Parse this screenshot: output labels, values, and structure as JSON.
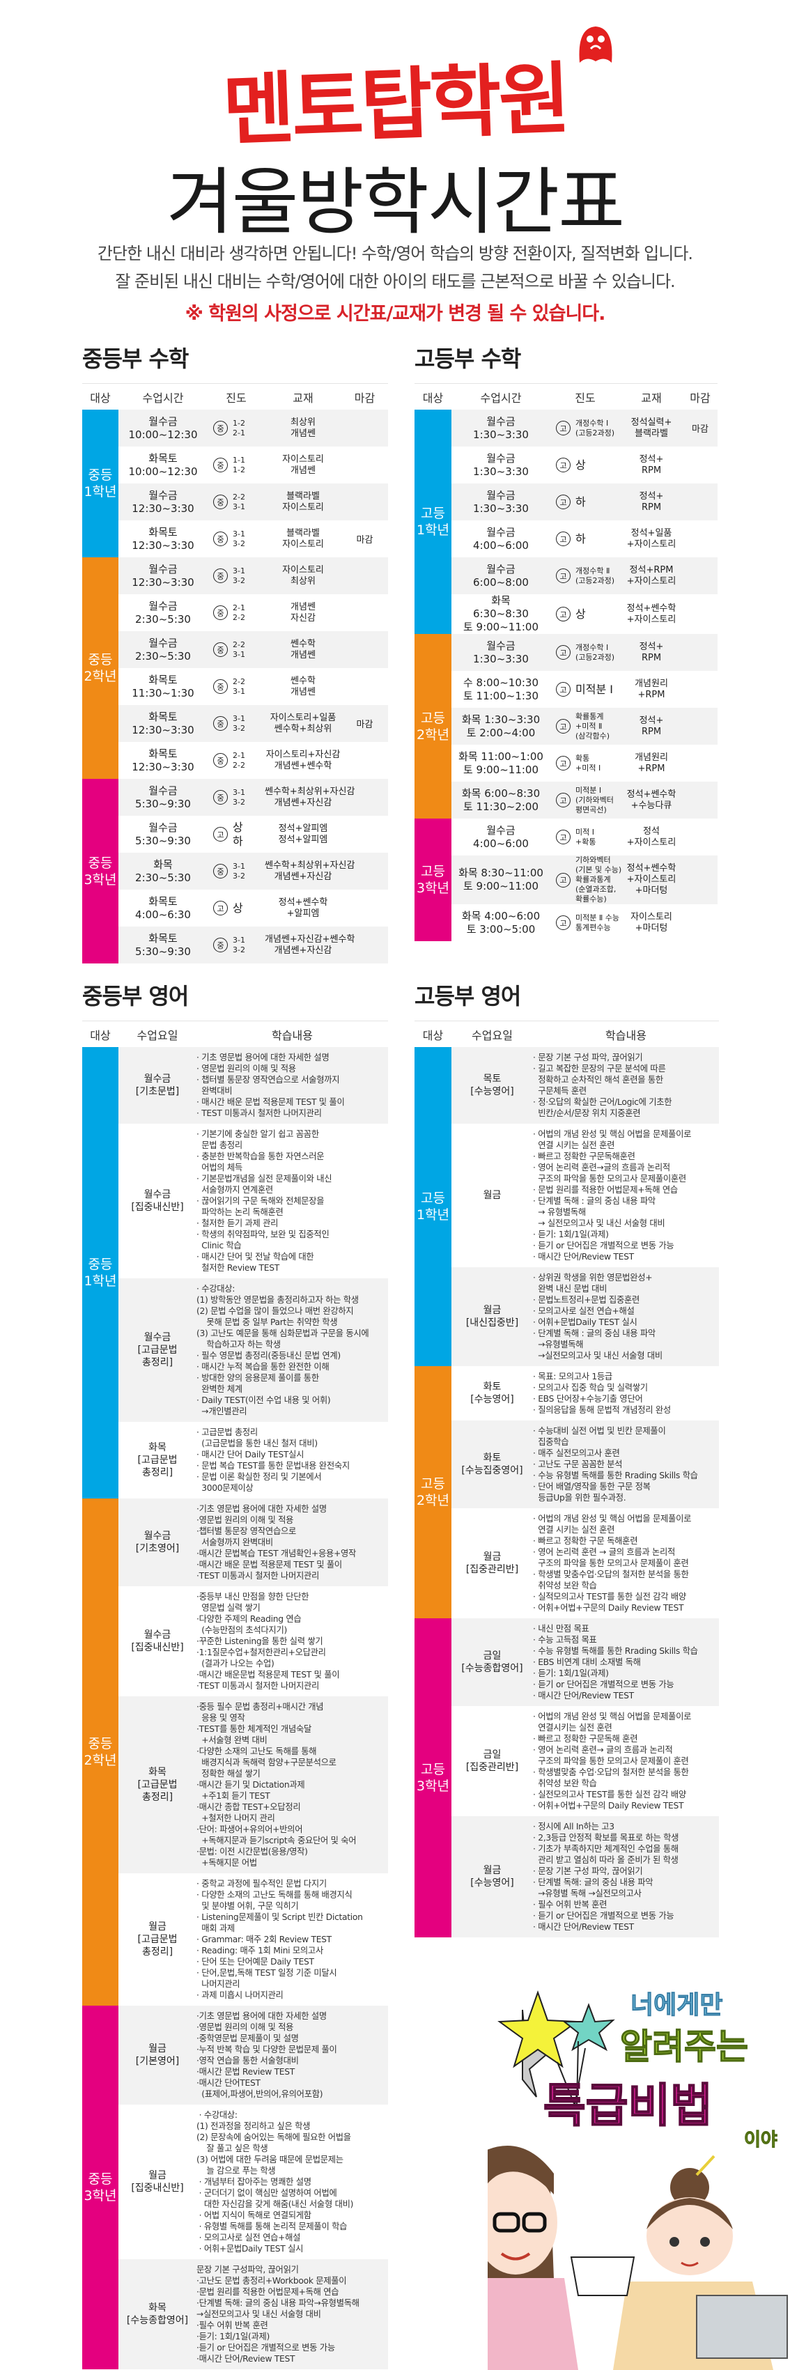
{
  "header": {
    "logo": "멘토탑학원",
    "title": "겨울방학시간표",
    "subtitle_1": "간단한 내신 대비라 생각하면 안됩니다! 수학/영어 학습의 방향 전환이자, 질적변화 입니다.",
    "subtitle_2": "잘 준비된 내신 대비는 수학/영어에 대한 아이의 태도를 근본적으로 바꿀 수 있습니다.",
    "notice": "※ 학원의 사정으로 시간표/교재가 변경 될 수 있습니다."
  },
  "colors": {
    "grade1": "#00a6e4",
    "grade2": "#f08a16",
    "grade3": "#e4007f",
    "logo": "#e3201f",
    "notice": "#d8232a"
  },
  "middle_math": {
    "title": "중등부 수학",
    "headers": [
      "대상",
      "수업시간",
      "진도",
      "교재",
      "마감"
    ],
    "groups": [
      {
        "label": "중등\n1학년",
        "color": "#00a6e4",
        "rows": [
          {
            "time": "월수금\n10:00~12:30",
            "badge": "중",
            "progress": "1-2\n2-1",
            "book": "최상위\n개념쎈",
            "deadline": ""
          },
          {
            "time": "화목토\n10:00~12:30",
            "badge": "중",
            "progress": "1-1\n1-2",
            "book": "자이스토리\n개념쎈",
            "deadline": ""
          },
          {
            "time": "월수금\n12:30~3:30",
            "badge": "중",
            "progress": "2-2\n3-1",
            "book": "블랙라벨\n자이스토리",
            "deadline": ""
          },
          {
            "time": "화목토\n12:30~3:30",
            "badge": "중",
            "progress": "3-1\n3-2",
            "book": "블랙라벨\n자이스토리",
            "deadline": "마감"
          }
        ]
      },
      {
        "label": "중등\n2학년",
        "color": "#f08a16",
        "rows": [
          {
            "time": "월수금\n12:30~3:30",
            "badge": "중",
            "progress": "3-1\n3-2",
            "book": "자이스토리\n최상위",
            "deadline": ""
          },
          {
            "time": "월수금\n2:30~5:30",
            "badge": "중",
            "progress": "2-1\n2-2",
            "book": "개념쎈\n자신감",
            "deadline": ""
          },
          {
            "time": "월수금\n2:30~5:30",
            "badge": "중",
            "progress": "2-2\n3-1",
            "book": "쎈수학\n개념쎈",
            "deadline": ""
          },
          {
            "time": "화목토\n11:30~1:30",
            "badge": "중",
            "progress": "2-2\n3-1",
            "book": "쎈수학\n개념쎈",
            "deadline": ""
          },
          {
            "time": "화목토\n12:30~3:30",
            "badge": "중",
            "progress": "3-1\n3-2",
            "book": "자이스토리+일품\n쎈수학+최상위",
            "deadline": "마감"
          },
          {
            "time": "화목토\n12:30~3:30",
            "badge": "중",
            "progress": "2-1\n2-2",
            "book": "자이스토리+자신감\n개념쎈+쎈수학",
            "deadline": ""
          }
        ]
      },
      {
        "label": "중등\n3학년",
        "color": "#e4007f",
        "rows": [
          {
            "time": "월수금\n5:30~9:30",
            "badge": "중",
            "progress": "3-1\n3-2",
            "book": "쎈수학+최상위+자신감\n개념쎈+자신감",
            "deadline": ""
          },
          {
            "time": "월수금\n5:30~9:30",
            "badge": "고",
            "progress": "상\n하",
            "book": "정석+알피엠\n정석+알피엠",
            "deadline": ""
          },
          {
            "time": "화목\n2:30~5:30",
            "badge": "중",
            "progress": "3-1\n3-2",
            "book": "쎈수학+최상위+자신감\n개념쎈+자신감",
            "deadline": ""
          },
          {
            "time": "화목토\n4:00~6:30",
            "badge": "고",
            "progress": "상",
            "book": "정석+쎈수학\n+알피엠",
            "deadline": ""
          },
          {
            "time": "화목토\n5:30~9:30",
            "badge": "중",
            "progress": "3-1\n3-2",
            "book": "개념쎈+자신감+쎈수학\n개념쎈+자신감",
            "deadline": ""
          }
        ]
      }
    ]
  },
  "high_math": {
    "title": "고등부 수학",
    "headers": [
      "대상",
      "수업시간",
      "진도",
      "교재",
      "마감"
    ],
    "groups": [
      {
        "label": "고등\n1학년",
        "color": "#00a6e4",
        "rows": [
          {
            "time": "월수금\n1:30~3:30",
            "badge": "고",
            "progress": "개정수학 Ⅰ\n(고등2과정)",
            "book": "정석실력+\n블랙라벨",
            "deadline": "마감"
          },
          {
            "time": "월수금\n1:30~3:30",
            "badge": "고",
            "progress": "상",
            "book": "정석+\nRPM",
            "deadline": ""
          },
          {
            "time": "월수금\n1:30~3:30",
            "badge": "고",
            "progress": "하",
            "book": "정석+\nRPM",
            "deadline": ""
          },
          {
            "time": "월수금\n4:00~6:00",
            "badge": "고",
            "progress": "하",
            "book": "정석+일품\n+자이스토리",
            "deadline": ""
          },
          {
            "time": "월수금\n6:00~8:00",
            "badge": "고",
            "progress": "개정수학 Ⅱ\n(고등2과정)",
            "book": "정석+RPM\n+자이스토리",
            "deadline": ""
          },
          {
            "time": "화목\n6:30~8:30\n토 9:00~11:00",
            "badge": "고",
            "progress": "상",
            "book": "정석+쎈수학\n+자이스토리",
            "deadline": ""
          }
        ]
      },
      {
        "label": "고등\n2학년",
        "color": "#f08a16",
        "rows": [
          {
            "time": "월수금\n1:30~3:30",
            "badge": "고",
            "progress": "개정수학 Ⅰ\n(고등2과정)",
            "book": "정석+\nRPM",
            "deadline": ""
          },
          {
            "time": "수 8:00~10:30\n토 11:00~1:30",
            "badge": "고",
            "progress": "미적분 Ⅰ",
            "book": "개념원리\n+RPM",
            "deadline": ""
          },
          {
            "time": "화목 1:30~3:30\n토 2:00~4:00",
            "badge": "고",
            "progress": "확률통계\n+미적 Ⅱ\n(삼각함수)",
            "book": "정석+\nRPM",
            "deadline": ""
          },
          {
            "time": "화목 11:00~1:00\n토 9:00~11:00",
            "badge": "고",
            "progress": "확통\n+미적 Ⅰ",
            "book": "개념원리\n+RPM",
            "deadline": ""
          },
          {
            "time": "화목 6:00~8:30\n토 11:30~2:00",
            "badge": "고",
            "progress": "미적분 Ⅰ\n(기하와벡터\n평면곡선)",
            "book": "정석+쎈수학\n+수능다큐",
            "deadline": ""
          }
        ]
      },
      {
        "label": "고등\n3학년",
        "color": "#e4007f",
        "rows": [
          {
            "time": "월수금\n4:00~6:00",
            "badge": "고",
            "progress": "미적 Ⅰ\n+확통",
            "book": "정석\n+자이스토리",
            "deadline": ""
          },
          {
            "time": "화목 8:30~11:00\n토 9:00~11:00",
            "badge": "고",
            "progress": "기하와벡터\n(기본 및 수능)\n확률과통계\n(순열과조합,\n확률수능)",
            "book": "정석+쎈수학\n+자이스토리\n+마더텅",
            "deadline": ""
          },
          {
            "time": "화목 4:00~6:00\n토 3:00~5:00",
            "badge": "고",
            "progress": "미적분 Ⅱ 수능\n통계편수능",
            "book": "자이스토리\n+마더텅",
            "deadline": ""
          }
        ]
      }
    ]
  },
  "middle_english": {
    "title": "중등부 영어",
    "headers": [
      "대상",
      "수업요일",
      "학습내용"
    ],
    "groups": [
      {
        "label": "중등\n1학년",
        "color": "#00a6e4",
        "rows": [
          {
            "day": "월수금\n[기초문법]",
            "lines": [
              "· 기초 영문법 용어에 대한 자세한 설명",
              "· 영문법 원리의 이해 및 적용",
              "· 챕터별 통문장 영작연습으로 서술형까지",
              "  완벽대비",
              "· 매시간 배운 문법 적용문제 TEST 및 풀이",
              "· TEST 미통과시 철저한 나머지관리"
            ]
          },
          {
            "day": "월수금\n[집중내신반]",
            "lines": [
              "· 기본기에 충실한 알기 쉽고 꼼꼼한",
              "  문법 총정리",
              "· 충분한 반복학습을 통한 자연스러운",
              "  어법의 체득",
              "· 기본문법개념을 실전 문제풀이와 내신",
              "  서술형까지 연계훈련",
              "· 끊어읽기의 구문 독해와 전체문장을",
              "  파악하는 논리 독해훈련",
              "· 철저한 듣기 과제 관리",
              "· 학생의 취약점파악, 보완 및 집중적인",
              "  Clinic 학습",
              "· 매시간 단어 및 전날 학습에 대한",
              "  철저한 Review TEST"
            ]
          },
          {
            "day": "월수금\n[고급문법\n총정리]",
            "lines": [
              "· 수강대상:",
              "(1) 방학동안 영문법을 총정리하고자 하는 학생",
              "(2) 문법 수업을 많이 들었으나 매번 완강하지",
              "    못해 문법 중 일부 Part는 취약한 학생",
              "(3) 고난도 예문을 통해 심화문법과 구문을 동시에",
              "    학습하고자 하는 학생",
              "· 필수 영문법 총정리(중등내신 문법 연계)",
              "· 매시간 누적 복습을 통한 완전한 이해",
              "· 방대한 양의 응용문제 풀이를 통한",
              "  완벽한 체계",
              "· Daily TEST(이전 수업 내용 및 어휘)",
              "  →개인별관리"
            ]
          },
          {
            "day": "화목\n[고급문법\n총정리]",
            "lines": [
              "· 고급문법 총정리",
              "  (고급문법을 통한 내신 철저 대비)",
              "· 매시간 단어 Daily TEST실시",
              "· 문법 복습 TEST를 통한 문법내용 완전숙지",
              "· 문법 이론 확실한 정리 및 기본에서",
              "  3000문제이상"
            ]
          }
        ]
      },
      {
        "label": "중등\n2학년",
        "color": "#f08a16",
        "rows": [
          {
            "day": "월수금\n[기초영어]",
            "lines": [
              "·기초 영문법 용어에 대한 자세한 설명",
              "·영문법 원리의 이해 및 적용",
              "·챕터별 통문장 영작연습으로",
              "  서술형까지 완벽대비",
              "·매시간 문법복습 TEST 개념확인+응용+영작",
              "·매시간 배운 문법 적용문제 TEST 및 풀이",
              "·TEST 미통과시 철저한 나머지관리"
            ]
          },
          {
            "day": "월수금\n[집중내신반]",
            "lines": [
              "·중등부 내신 만점을 향한 단단한",
              "  영문법 실력 쌓기",
              "·다양한 주제의 Reading 연습",
              "  (수능만점의 초석다지기)",
              "·꾸준한 Listening을 통한 실력 쌓기",
              "·1:1질문수업+철저한관리+오답관리",
              "  (결과가 나오는 수업)",
              "·매시간 배운문법 적용문제 TEST 및 풀이",
              "·TEST 미통과시 철저한 나머지관리"
            ]
          },
          {
            "day": "화목\n[고급문법\n총정리]",
            "lines": [
              "·중등 필수 문법 총정리+매시간 개념",
              "  응용 및 영작",
              "·TEST를 통한 체계적인 개념숙달",
              "  +서술형 완벽 대비",
              "·다양한 소재의 고난도 독해를 통해",
              "  배경지식과 독해력 함양+구문분석으로",
              "  정확한 해설 쌓기",
              "·매시간 듣기 및 Dictation과제",
              "  +주1회 듣기 TEST",
              "·매시간 종합 TEST+오답정리",
              "  +철저한 나머지 관리",
              "·단어: 파생어+유의어+반의어",
              "  +독해지문과 듣기script속 중요단어 및 숙어",
              "·문법: 이전 시간문법(응용/영작)",
              "  +독해지문 어법"
            ]
          },
          {
            "day": "월금\n[고급문법\n총정리]",
            "lines": [
              "· 중학교 과정에 필수적인 문법 다지기",
              "· 다양한 소재의 고난도 독해를 통해 배경지식",
              "  및 분야별 어휘, 구문 익히기",
              "· Listening문제풀이 및 Script 빈칸 Dictation",
              "  매회 과제",
              "· Grammar: 매주 2회 Review TEST",
              "· Reading: 매주 1회 Mini 모의고사",
              "· 단어 또는 단어예문 Daily TEST",
              "· 단어,문법,독해 TEST 일정 기준 미달시",
              "  나머지관리",
              "· 과제 미흡시 나머지관리"
            ]
          }
        ]
      },
      {
        "label": "중등\n3학년",
        "color": "#e4007f",
        "rows": [
          {
            "day": "월금\n[기본영어]",
            "lines": [
              "·기초 영문법 용어에 대한 자세한 설명",
              "·영문법 원리의 이해 및 적용",
              "·중학영문법 문제풀이 및 설명",
              "·누적 반복 학습 및 다양한 문법문제 풀이",
              "·영작 연습을 통한 서술형대비",
              "·매시간 문법 Review TEST",
              "·매시간 단어TEST",
              "  (표제어,파생어,반의어,유의어포함)"
            ]
          },
          {
            "day": "월금\n[집중내신반]",
            "lines": [
              " · 수강대상:",
              "(1) 전과정을 정리하고 싶은 학생",
              "(2) 문장속에 숨어있는 독해에 필요한 어법을",
              "    잘 풀고 싶은 학생",
              "(3) 어법에 대한 두려움 때문에 문법문제는",
              "    늘 감으로 푸는 학생",
              " · 개념부터 잡아주는 명쾌한 설명",
              " · 군더더기 없이 핵심만 설명하여 어법에",
              "   대한 자신감을 갖게 해줌(내신 서술형 대비)",
              " · 어법 지식이 독해로 연결되게함",
              " · 유형별 독해를 통해 논리적 문제풀이 학습",
              " · 모의고사로 실전 연습+해설",
              " · 어휘+문법Daily TEST 실시"
            ]
          },
          {
            "day": "화목\n[수능종합영어]",
            "lines": [
              "문장 기본 구성파악, 끊어읽기",
              "·고난도 문법 총정리+Workbook 문제풀이",
              "·문법 원리를 적용한 어법문제+독해 연습",
              "·단계별 독해: 글의 중심 내용 파악→유형별독해",
              "→실전모의고사 및 내신 서술형 대비",
              "·필수 어휘 반복 훈련",
              "·듣기: 1회/1일(과제)",
              "·듣기 or 단어집은 개별적으로 변동 가능",
              "·매시간 단어/Review TEST"
            ]
          }
        ]
      }
    ]
  },
  "high_english": {
    "title": "고등부 영어",
    "headers": [
      "대상",
      "수업요일",
      "학습내용"
    ],
    "groups": [
      {
        "label": "고등\n1학년",
        "color": "#00a6e4",
        "rows": [
          {
            "day": "목토\n[수능영어]",
            "lines": [
              "· 문장 기본 구성 파악, 끊어읽기",
              "· 길고 복잡한 문장의 구문 분석에 따른",
              "  정확하고 순차적인 해석 훈련을 통한",
              "  구문체득 훈련",
              "· 정·오답의 확실한 근어/Logic에 기초한",
              "  빈칸/순서/문장 위치 지중훈련"
            ]
          },
          {
            "day": "월금",
            "lines": [
              "· 어법의 개념 완성 및 핵심 어법을 문제풀이로",
              "  연결 시키는 실전 훈련",
              "· 빠르고 정확한 구문독해훈련",
              "· 영어 논리력 훈련→글의 흐름과 논리적",
              "  구조의 파악을 통한 모의고사 문제풀이훈련",
              "· 문법 원리를 적용한 어법문제+독해 연습",
              "· 단계별 독해 : 글의 중심 내용 파악",
              "  → 유형별독해",
              "  → 실전모의고사 및 내신 서술형 대비",
              "· 듣기: 1회/1일(과제)",
              "· 듣기 or 단어집은 개별적으로 변동 가능",
              "· 매시간 단어/Review TEST"
            ]
          },
          {
            "day": "월금\n[내신집중반]",
            "lines": [
              "· 상위권 학생을 위한 영문법완성+",
              "  완벽 내신 문법 대비",
              "· 문법노트정리+문법 집중훈련",
              "· 모의고사로 실전 연습+해설",
              "· 어휘+문법Daily TEST 실시",
              "· 단계별 독해 : 글의 중심 내용 파악",
              "  →유형별독해",
              "  →실전모의고사 및 내신 서술형 대비"
            ]
          }
        ]
      },
      {
        "label": "고등\n2학년",
        "color": "#f08a16",
        "rows": [
          {
            "day": "화토\n[수능영어]",
            "lines": [
              "· 목표: 모의고사 1등급",
              "· 모의고사 집중 학습 및 실력쌓기",
              "· EBS 단어장+수능기출 영단어",
              "· 질의응답을 통해 문법적 개념정리 완성"
            ]
          },
          {
            "day": "화토\n[수능집중영어]",
            "lines": [
              "· 수능대비 실전 어법 및 빈칸 문제풀이",
              "  집중학습",
              "· 매주 실전모의고사 훈련",
              "· 고난도 구문 꼼꼼한 분석",
              "· 수능 유형별 독해를 통한 Rrading Skills 학습",
              "· 단어 배열/영작을 통한 구문 정복",
              "  등급Up을 위한 필수과정."
            ]
          },
          {
            "day": "월금\n[집중관리반]",
            "lines": [
              "· 어법의 개념 완성 및 핵심 어법을 문제풀이로",
              "  연결 시키는 실전 훈련",
              "· 빠르고 정확한 구문 독해훈련",
              "· 영어 논리력 훈련 → 글의 흐름과 논리적",
              "  구조의 파악을 통한 모의고사 문제풀이 훈련",
              "· 학생별 맞춤수업·오답의 철저한 분석을 통한",
              "  취약성 보완 학습",
              "· 실적모의고사 TEST를 통한 실전 감각 배양",
              "· 어휘+어법+구문의 Daily Review TEST"
            ]
          }
        ]
      },
      {
        "label": "고등\n3학년",
        "color": "#e4007f",
        "rows": [
          {
            "day": "금일\n[수능종합영어]",
            "lines": [
              "· 내신 만점 목표",
              "· 수능 고득점 목표",
              "· 수능 유형별 독해를 통한 Rrading Skills 학습",
              "· EBS 비연계 대비 소재별 독해",
              "· 듣기: 1회/1일(과제)",
              "· 듣기 or 단어집은 개별적으로 변동 가능",
              "· 매시간 단어/Review TEST"
            ]
          },
          {
            "day": "금일\n[집중관리반]",
            "lines": [
              "· 어법의 개념 완성 및 핵심 어법을 문제풀이로",
              "  연결시키는 실전 훈련",
              "· 빠르고 정확한 구문독해 훈련",
              "· 영어 논리력 훈련→ 글의 흐름과 논리적",
              "  구조의 파악을 통한 모의고사 문제풀이 훈련",
              "· 학생별맞춤 수업·오답의 철저한 분석을 통한",
              "  취약성 보완 학습",
              "· 실전모의고사 TEST를 통한 실전 감각 배양",
              "· 어휘+어법+구문의 Daily Review TEST"
            ]
          },
          {
            "day": "월금\n[수능영어]",
            "lines": [
              "· 정시에 All In하는 고3",
              "· 2,3등급 안정적 확보를 목표로 하는 학생",
              "· 기초가 부족하지만 체계적인 수업을 통해",
              "  관리 받고 열심히 따라 올 준비가 된 학생",
              "· 문장 기본 구성 파악, 끊어읽기",
              "· 단계별 독해: 글의 중심 내용 파악",
              "  →유형별 독해 →실전모의고사",
              "· 필수 어휘 반복 훈련",
              "· 듣기 or 단어집은 개별적으로 변동 가능",
              "· 매시간 단어/Review TEST"
            ]
          }
        ]
      }
    ]
  },
  "cartoon": {
    "line1": "너에게만",
    "line2": "알려주는",
    "line3": "특급비법",
    "line4": "이야"
  }
}
